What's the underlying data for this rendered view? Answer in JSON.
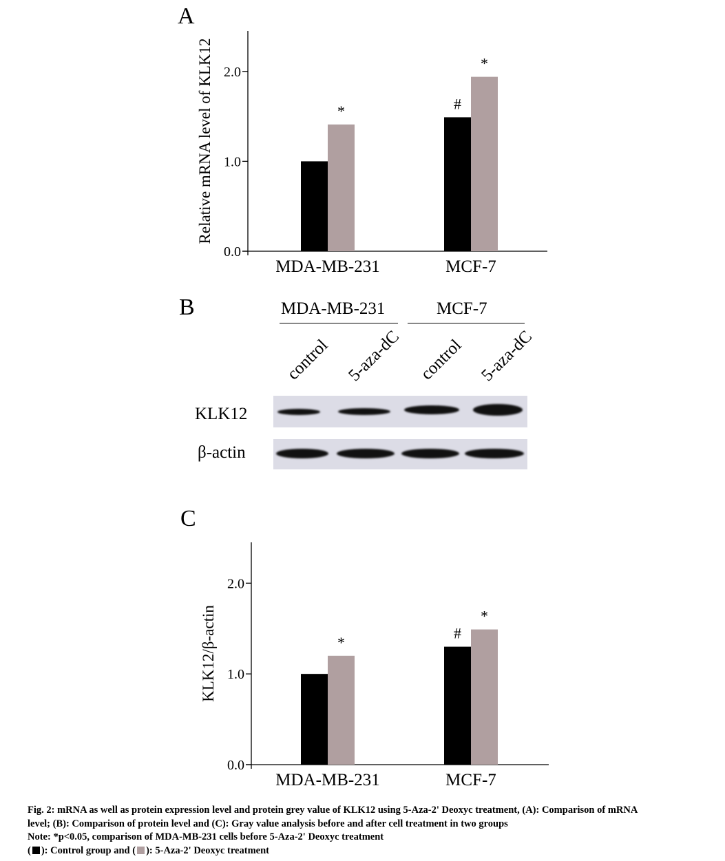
{
  "panels": {
    "a": "A",
    "b": "B",
    "c": "C"
  },
  "chart_data": [
    {
      "type": "bar",
      "categories": [
        "MDA-MB-231",
        "MCF-7"
      ],
      "series": [
        {
          "values": [
            1.0,
            1.49
          ],
          "color": "#000000"
        },
        {
          "values": [
            1.41,
            1.94
          ],
          "color": "#b09fa0"
        }
      ],
      "ylabel": "Relative mRNA level of KLK12",
      "ylim": [
        0,
        2.45
      ],
      "yticks": [
        "0.0",
        "1.0",
        "2.0"
      ],
      "annotations": [
        {
          "category": "MDA-MB-231",
          "series": 1,
          "text": "*"
        },
        {
          "category": "MCF-7",
          "series": 0,
          "text": "#"
        },
        {
          "category": "MCF-7",
          "series": 1,
          "text": "*"
        }
      ]
    },
    {
      "type": "bar",
      "categories": [
        "MDA-MB-231",
        "MCF-7"
      ],
      "series": [
        {
          "values": [
            1.0,
            1.3
          ],
          "color": "#000000"
        },
        {
          "values": [
            1.2,
            1.49
          ],
          "color": "#b09fa0"
        }
      ],
      "ylabel": "KLK12/β-actin",
      "ylim": [
        0,
        2.45
      ],
      "yticks": [
        "0.0",
        "1.0",
        "2.0"
      ],
      "annotations": [
        {
          "category": "MDA-MB-231",
          "series": 1,
          "text": "*"
        },
        {
          "category": "MCF-7",
          "series": 0,
          "text": "#"
        },
        {
          "category": "MCF-7",
          "series": 1,
          "text": "*"
        }
      ]
    }
  ],
  "blot": {
    "groups": [
      "MDA-MB-231",
      "MCF-7"
    ],
    "lanes": [
      "control",
      "5-aza-dC",
      "control",
      "5-aza-dC"
    ],
    "rows": [
      "KLK12",
      "β-actin"
    ],
    "strip_color": "#dcdce6"
  },
  "caption": {
    "line1": "Fig. 2: mRNA as well as protein expression level and protein grey value of KLK12 using 5-Aza-2' Deoxyc treatment, (A): Comparison of mRNA",
    "line2": "level; (B): Comparison of protein level and (C): Gray value analysis before and after cell treatment in two groups",
    "line3": "Note: *p<0.05, comparison of MDA-MB-231 cells before 5-Aza-2' Deoxyc treatment",
    "line4_open": "(",
    "line4_mid": "): Control group and (",
    "line4_end": "):  5-Aza-2' Deoxyc treatment",
    "swatch_control": "#000000",
    "swatch_treatment": "#b09fa0"
  }
}
